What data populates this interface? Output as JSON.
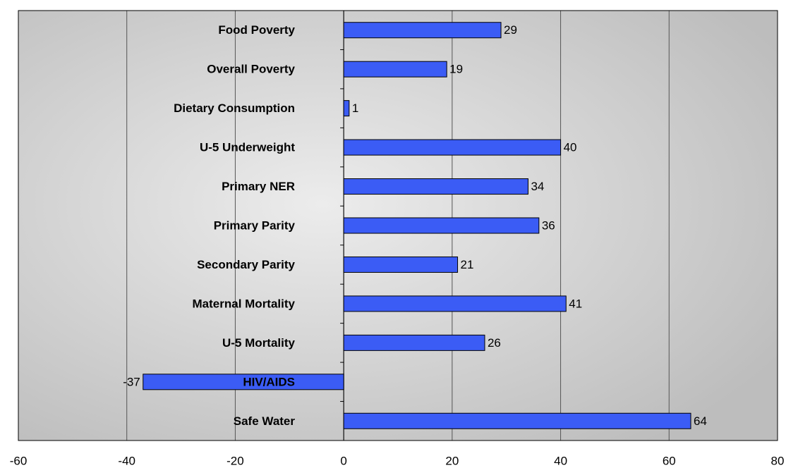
{
  "chart_data": {
    "type": "bar",
    "orientation": "horizontal",
    "categories": [
      "Food Poverty",
      "Overall Poverty",
      "Dietary Consumption",
      "U-5 Underweight",
      "Primary NER",
      "Primary Parity",
      "Secondary Parity",
      "Maternal Mortality",
      "U-5 Mortality",
      "HIV/AIDS",
      "Safe Water"
    ],
    "values": [
      29,
      19,
      1,
      40,
      34,
      36,
      21,
      41,
      26,
      -37,
      64
    ],
    "color": "#3b5cf5",
    "xlim": [
      -60,
      80
    ],
    "xticks": [
      -60,
      -40,
      -20,
      0,
      20,
      40,
      60,
      80
    ],
    "grid": true
  }
}
